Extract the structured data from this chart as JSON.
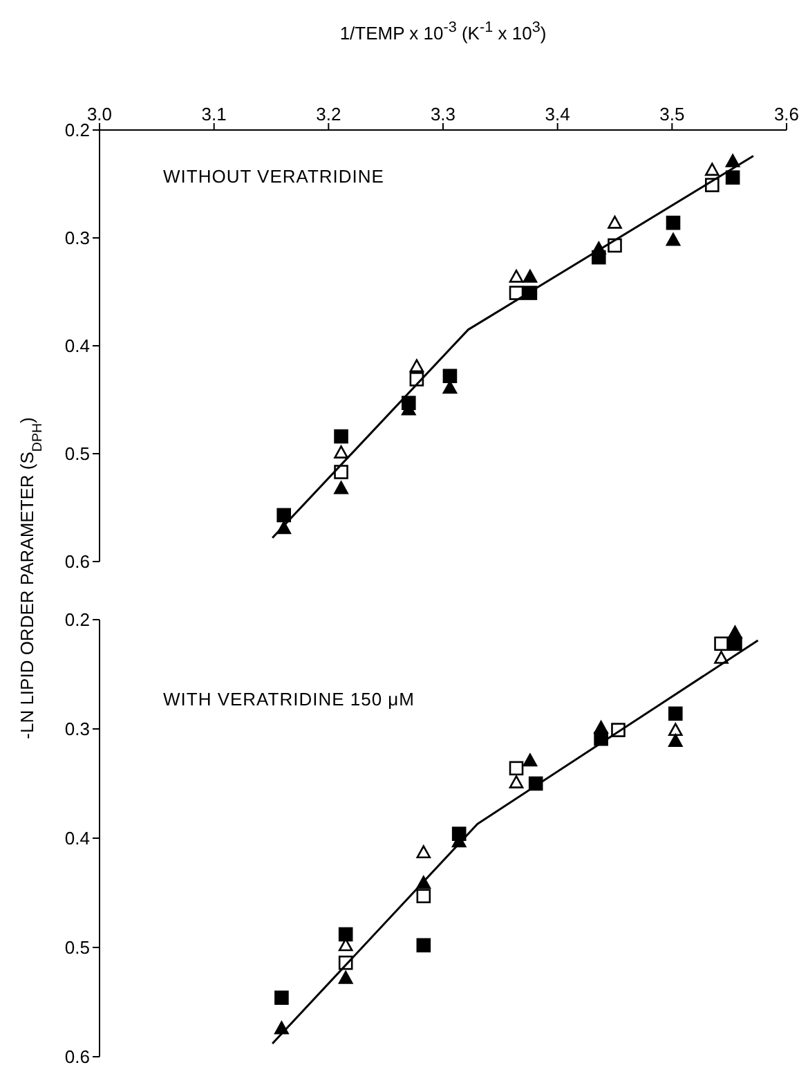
{
  "chart_data": [
    {
      "type": "scatter",
      "title": "WITHOUT VERATRIDINE",
      "xlabel": "1/TEMP x 10$^{-3}$ (K$^{-1}$ x 10$^{3}$)",
      "ylabel": "-LN LIPID ORDER PARAMETER (S$_{DPH}$)",
      "xlim": [
        3.0,
        3.6
      ],
      "xticks": [
        {
          "value": 3.0,
          "label": "3.0"
        },
        3.1,
        3.2,
        3.3,
        3.4,
        3.5,
        3.6
      ],
      "ylim": [
        0.6,
        0.2
      ],
      "yticks": [
        0.2,
        0.3,
        0.4,
        0.5,
        0.6
      ],
      "grid": false,
      "legend": false,
      "series": [
        {
          "type": "scatter",
          "marker": "square",
          "color": "#000000",
          "x": [
            3.161,
            3.211,
            3.27,
            3.306,
            3.376,
            3.436,
            3.501,
            3.553
          ],
          "values": [
            0.557,
            0.484,
            0.453,
            0.428,
            0.351,
            0.318,
            0.286,
            0.244
          ]
        },
        {
          "type": "scatter",
          "marker": "square",
          "color": "#ffffff",
          "x": [
            3.211,
            3.277,
            3.364,
            3.45,
            3.535
          ],
          "values": [
            0.517,
            0.431,
            0.351,
            0.307,
            0.251
          ]
        },
        {
          "type": "scatter",
          "marker": "triangle",
          "color": "#ffffff",
          "x": [
            3.211,
            3.277,
            3.364,
            3.45,
            3.535
          ],
          "values": [
            0.499,
            0.419,
            0.336,
            0.286,
            0.237
          ]
        },
        {
          "type": "scatter",
          "marker": "triangle",
          "color": "#000000",
          "x": [
            3.161,
            3.211,
            3.27,
            3.306,
            3.376,
            3.436,
            3.501,
            3.553
          ],
          "values": [
            0.569,
            0.532,
            0.459,
            0.439,
            0.336,
            0.31,
            0.302,
            0.229
          ]
        },
        {
          "type": "line",
          "marker": "none",
          "color": "#000000",
          "x": [
            3.151,
            3.322,
            3.571
          ],
          "values": [
            0.578,
            0.385,
            0.224
          ]
        }
      ]
    },
    {
      "type": "scatter",
      "title": "WITH VERATRIDINE 150 μM",
      "tick_labels": "y",
      "xlim": [
        3.0,
        3.6
      ],
      "ylim": [
        0.6,
        0.2
      ],
      "yticks": [
        0.2,
        0.3,
        0.4,
        0.5,
        0.6
      ],
      "grid": false,
      "legend": false,
      "series": [
        {
          "type": "scatter",
          "marker": "square",
          "color": "#000000",
          "x": [
            3.159,
            3.215,
            3.283,
            3.314,
            3.381,
            3.438,
            3.503,
            3.555
          ],
          "values": [
            0.546,
            0.488,
            0.498,
            0.396,
            0.35,
            0.309,
            0.286,
            0.222
          ]
        },
        {
          "type": "scatter",
          "marker": "square",
          "color": "#ffffff",
          "x": [
            3.215,
            3.283,
            3.364,
            3.453,
            3.543
          ],
          "values": [
            0.514,
            0.453,
            0.336,
            0.301,
            0.222
          ]
        },
        {
          "type": "scatter",
          "marker": "triangle",
          "color": "#ffffff",
          "x": [
            3.215,
            3.283,
            3.364,
            3.503,
            3.543
          ],
          "values": [
            0.498,
            0.413,
            0.349,
            0.301,
            0.235
          ]
        },
        {
          "type": "scatter",
          "marker": "triangle",
          "color": "#000000",
          "x": [
            3.159,
            3.215,
            3.283,
            3.314,
            3.376,
            3.438,
            3.503,
            3.555
          ],
          "values": [
            0.574,
            0.528,
            0.441,
            0.403,
            0.329,
            0.299,
            0.311,
            0.212
          ]
        },
        {
          "type": "line",
          "marker": "none",
          "color": "#000000",
          "x": [
            3.151,
            3.33,
            3.575
          ],
          "values": [
            0.588,
            0.387,
            0.219
          ]
        }
      ]
    }
  ]
}
